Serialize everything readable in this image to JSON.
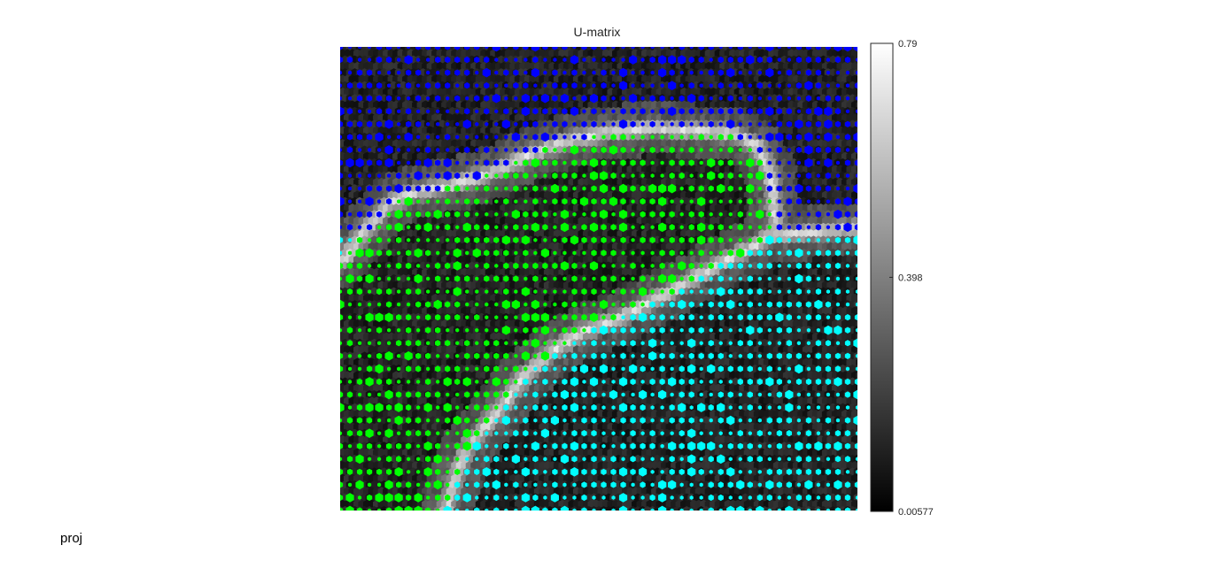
{
  "footer": {
    "label": "proj"
  },
  "chart_data": {
    "type": "heatmap",
    "title": "U-matrix",
    "xlabel": "",
    "ylabel": "",
    "grid": false,
    "colorbar": {
      "min": 0.00577,
      "max": 0.79,
      "ticks": [
        0.79,
        0.398,
        0.00577
      ],
      "tick_labels": [
        "0.79",
        "0.398",
        "0.00577"
      ],
      "colormap": "gray"
    },
    "map": {
      "lattice": "hexagonal",
      "columns": 106,
      "rows": 72
    },
    "clusters": [
      {
        "color": "#0000ff"
      },
      {
        "color": "#00ff00"
      },
      {
        "color": "#00ffff"
      }
    ],
    "colors": {
      "background": "#ffffff",
      "text": "#262626"
    }
  }
}
